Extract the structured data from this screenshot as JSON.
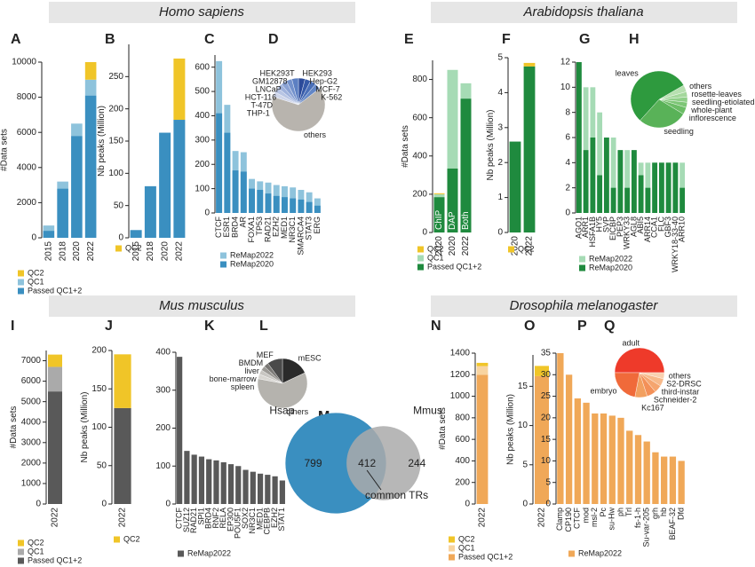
{
  "sections": [
    "Homo sapiens",
    "Arabidopsis thaliana",
    "Mus musculus",
    "Drosophila melanogaster"
  ],
  "chart_data": [
    {
      "type": "bar",
      "panel": "A",
      "stacked": true,
      "ylabel": "#Data sets",
      "categories": [
        "2015",
        "2018",
        "2020",
        "2022"
      ],
      "series": [
        {
          "name": "Passed QC1+2",
          "color": "#3a8fc0",
          "values": [
            400,
            2800,
            5800,
            8100
          ]
        },
        {
          "name": "QC1",
          "color": "#8ec3dc",
          "values": [
            300,
            400,
            700,
            900
          ]
        },
        {
          "name": "QC2",
          "color": "#f0c528",
          "values": [
            0,
            0,
            0,
            1000
          ]
        }
      ],
      "ylim": [
        0,
        10000
      ],
      "yticks": [
        0,
        2000,
        4000,
        6000,
        8000,
        10000
      ]
    },
    {
      "type": "bar",
      "panel": "B",
      "stacked": true,
      "ylabel": "Nb peaks (Million)",
      "categories": [
        "2015",
        "2018",
        "2020",
        "2022"
      ],
      "series": [
        {
          "color": "#3a8fc0",
          "values": [
            12,
            80,
            163,
            183
          ]
        },
        {
          "name": "QC2",
          "color": "#f0c528",
          "values": [
            0,
            0,
            0,
            95
          ]
        }
      ],
      "ylim": [
        0,
        300
      ],
      "yticks": [
        0,
        50,
        100,
        150,
        200,
        250
      ]
    },
    {
      "type": "bar",
      "panel": "C",
      "overlay": true,
      "categories": [
        "CTCF",
        "ESR1",
        "BRD4",
        "AR",
        "FOXA1",
        "TP53",
        "RAD21",
        "EZH2",
        "MED1",
        "NR3C1",
        "SMARCA4",
        "STAT3",
        "ERG"
      ],
      "series": [
        {
          "name": "ReMap2022",
          "color": "#8ec3dc",
          "values": [
            625,
            445,
            255,
            250,
            140,
            130,
            125,
            115,
            110,
            105,
            95,
            85,
            60
          ]
        },
        {
          "name": "ReMap2020",
          "color": "#3a8fc0",
          "values": [
            410,
            330,
            175,
            170,
            100,
            95,
            80,
            70,
            65,
            60,
            55,
            45,
            30
          ]
        }
      ],
      "ylim": [
        0,
        650
      ],
      "yticks": [
        0,
        100,
        200,
        300,
        400,
        500,
        600
      ]
    },
    {
      "type": "pie",
      "panel": "D",
      "labels": [
        "HEK293",
        "Hep-G2",
        "MCF-7",
        "K-562",
        "others",
        "THP-1",
        "T-47D",
        "HCT-116",
        "LNCaP",
        "GM12878",
        "HEK293T"
      ],
      "values": [
        4,
        3.5,
        3.5,
        3.5,
        65,
        3,
        3,
        3,
        3.5,
        3.5,
        4
      ],
      "colors": [
        "#2b4a9a",
        "#3559a8",
        "#4a6fb8",
        "#6286c6",
        "#b8b4ae",
        "#cfd6ea",
        "#b8c5e4",
        "#9fb2dc",
        "#8aa2d4",
        "#7391cc",
        "#5c7fc2"
      ]
    },
    {
      "type": "bar",
      "panel": "E",
      "stacked": true,
      "ylabel": "#Data sets",
      "categories": [
        "2020",
        "2020",
        "2022"
      ],
      "bar_labels": [
        "ChIP",
        "DAP",
        "Both"
      ],
      "series": [
        {
          "name": "Passed QC1+2",
          "color": "#1f8a3e",
          "values": [
            185,
            335,
            700
          ]
        },
        {
          "name": "QC1",
          "color": "#a6dbb5",
          "values": [
            15,
            515,
            80
          ]
        },
        {
          "name": "QC2",
          "color": "#f0c528",
          "values": [
            5,
            0,
            0
          ]
        }
      ],
      "ylim": [
        0,
        900
      ],
      "yticks": [
        0,
        200,
        400,
        600,
        800
      ]
    },
    {
      "type": "bar",
      "panel": "F",
      "stacked": true,
      "ylabel": "Nb peaks (Million)",
      "categories": [
        "2020",
        "2022"
      ],
      "series": [
        {
          "color": "#1f8a3e",
          "values": [
            2.6,
            4.75
          ]
        },
        {
          "name": "QC2",
          "color": "#f0c528",
          "values": [
            0,
            0.1
          ]
        }
      ],
      "ylim": [
        0,
        5
      ],
      "yticks": [
        0,
        1,
        2,
        3,
        4,
        5
      ]
    },
    {
      "type": "bar",
      "panel": "G",
      "overlay": true,
      "categories": [
        "AGO1",
        "ARR1",
        "HSFA1B",
        "HY5",
        "SVP",
        "EICBP",
        "PEP3",
        "WRKY33",
        "AGL8",
        "ABI5",
        "ARR14",
        "CCA1",
        "FLC",
        "GBF3",
        "WRKY18-33-40",
        "ARR10"
      ],
      "series": [
        {
          "name": "ReMap2022",
          "color": "#a6dbb5",
          "values": [
            12,
            10,
            10,
            8,
            6,
            6,
            5,
            5,
            5,
            4,
            4,
            4,
            4,
            4,
            4,
            4
          ]
        },
        {
          "name": "ReMap2020",
          "color": "#1f8a3e",
          "values": [
            12,
            5,
            6,
            3,
            6,
            2,
            5,
            2,
            5,
            3,
            2,
            4,
            4,
            4,
            4,
            2
          ]
        }
      ],
      "ylim": [
        0,
        12
      ],
      "yticks": [
        0,
        2,
        4,
        6,
        8,
        10,
        12
      ]
    },
    {
      "type": "pie",
      "panel": "H",
      "labels": [
        "others",
        "rosette-leaves",
        "seedling-etiolated",
        "whole-plant",
        "inflorescence",
        "seedling",
        "leaves"
      ],
      "values": [
        4,
        3,
        3,
        3,
        4,
        28,
        55
      ],
      "colors": [
        "#b7e0b0",
        "#a4d89c",
        "#8fcf88",
        "#7dc676",
        "#6cbd66",
        "#59b258",
        "#2e9a3e"
      ]
    },
    {
      "type": "bar",
      "panel": "I",
      "stacked": true,
      "ylabel": "#Data sets",
      "categories": [
        "2022"
      ],
      "series": [
        {
          "name": "Passed QC1+2",
          "color": "#595959",
          "values": [
            5500
          ]
        },
        {
          "name": "QC1",
          "color": "#aaaaaa",
          "values": [
            1200
          ]
        },
        {
          "name": "QC2",
          "color": "#f0c528",
          "values": [
            600
          ]
        }
      ],
      "ylim": [
        0,
        7500
      ],
      "yticks": [
        0,
        1000,
        2000,
        3000,
        4000,
        5000,
        6000,
        7000
      ]
    },
    {
      "type": "bar",
      "panel": "J",
      "stacked": true,
      "ylabel": "Nb peaks (Million)",
      "categories": [
        "2022"
      ],
      "series": [
        {
          "color": "#595959",
          "values": [
            125
          ]
        },
        {
          "name": "QC2",
          "color": "#f0c528",
          "values": [
            70
          ]
        }
      ],
      "ylim": [
        0,
        200
      ],
      "yticks": [
        0,
        50,
        100,
        150,
        200
      ]
    },
    {
      "type": "bar",
      "panel": "K",
      "categories": [
        "CTCF",
        "SUZ12",
        "RAD21",
        "SPI1",
        "BRD4",
        "RNF2",
        "RELA",
        "EP300",
        "POU5F1",
        "SOX2",
        "NR3C1",
        "MED1",
        "CEBPB",
        "EZH2",
        "STAT1"
      ],
      "series": [
        {
          "name": "ReMap2022",
          "color": "#595959",
          "values": [
            388,
            140,
            130,
            125,
            118,
            115,
            110,
            105,
            100,
            90,
            85,
            80,
            77,
            73,
            62
          ]
        }
      ],
      "ylim": [
        0,
        400
      ],
      "yticks": [
        0,
        100,
        200,
        300,
        400
      ]
    },
    {
      "type": "pie",
      "panel": "L",
      "labels": [
        "mESC",
        "others",
        "spleen",
        "bone-marrow",
        "liver",
        "BMDM",
        "MEF"
      ],
      "values": [
        18,
        60,
        3,
        3,
        3,
        3,
        10
      ],
      "colors": [
        "#2a2a2a",
        "#b5b3ae",
        "#d8d6d2",
        "#c8c6c2",
        "#9d9b97",
        "#7a7875",
        "#4a4a4a"
      ]
    },
    {
      "type": "venn",
      "panel": "M",
      "sets": [
        {
          "name": "Hsap",
          "only": 799,
          "color": "#3a8fc0"
        },
        {
          "name": "Mmus",
          "only": 244,
          "color": "#aaaaaa"
        }
      ],
      "common": 412,
      "annotation": "common TRs"
    },
    {
      "type": "bar",
      "panel": "N",
      "stacked": true,
      "ylabel": "#Data sets",
      "categories": [
        "2022"
      ],
      "series": [
        {
          "name": "Passed QC1+2",
          "color": "#f0a858",
          "values": [
            1200
          ]
        },
        {
          "name": "QC1",
          "color": "#f8d4a0",
          "values": [
            80
          ]
        },
        {
          "name": "QC2",
          "color": "#f0c528",
          "values": [
            30
          ]
        }
      ],
      "ylim": [
        0,
        1400
      ],
      "yticks": [
        0,
        200,
        400,
        600,
        800,
        1000,
        1200,
        1400
      ]
    },
    {
      "type": "bar",
      "panel": "O",
      "stacked": true,
      "ylabel": "Nb peaks (Million)",
      "categories": [
        "2022"
      ],
      "series": [
        {
          "color": "#f0a858",
          "values": [
            16.3
          ]
        },
        {
          "color": "#f0c528",
          "values": [
            1.3
          ]
        }
      ],
      "ylim": [
        0,
        19
      ],
      "yticks": [
        0,
        5,
        10,
        15
      ]
    },
    {
      "type": "bar",
      "panel": "P",
      "categories": [
        "Clamp",
        "CP190",
        "CTCF",
        "mod",
        "msl-2",
        "Pc",
        "su-Hw",
        "ph",
        "Trl",
        "fs-1-h",
        "Su-var-205",
        "grh",
        "hb",
        "BEAF-32",
        "Dfd"
      ],
      "series": [
        {
          "name": "ReMap2022",
          "color": "#f0a858",
          "values": [
            35,
            30,
            24.5,
            23.5,
            21,
            21,
            20.5,
            20,
            17,
            16,
            14.5,
            12,
            11,
            11,
            10
          ]
        }
      ],
      "ylim": [
        0,
        35
      ],
      "yticks": [
        0,
        5,
        10,
        15,
        20,
        25,
        30,
        35
      ]
    },
    {
      "type": "pie",
      "panel": "Q",
      "labels": [
        "adult",
        "others",
        "S2-DRSC",
        "third-instar",
        "Schneider-2",
        "Kc167",
        "embryo"
      ],
      "values": [
        50,
        4,
        5,
        5,
        6,
        8,
        22
      ],
      "colors": [
        "#ee3a2a",
        "#f9d1b0",
        "#f7b98a",
        "#f5a56f",
        "#f39058",
        "#f2a060",
        "#f06a3a"
      ]
    }
  ]
}
